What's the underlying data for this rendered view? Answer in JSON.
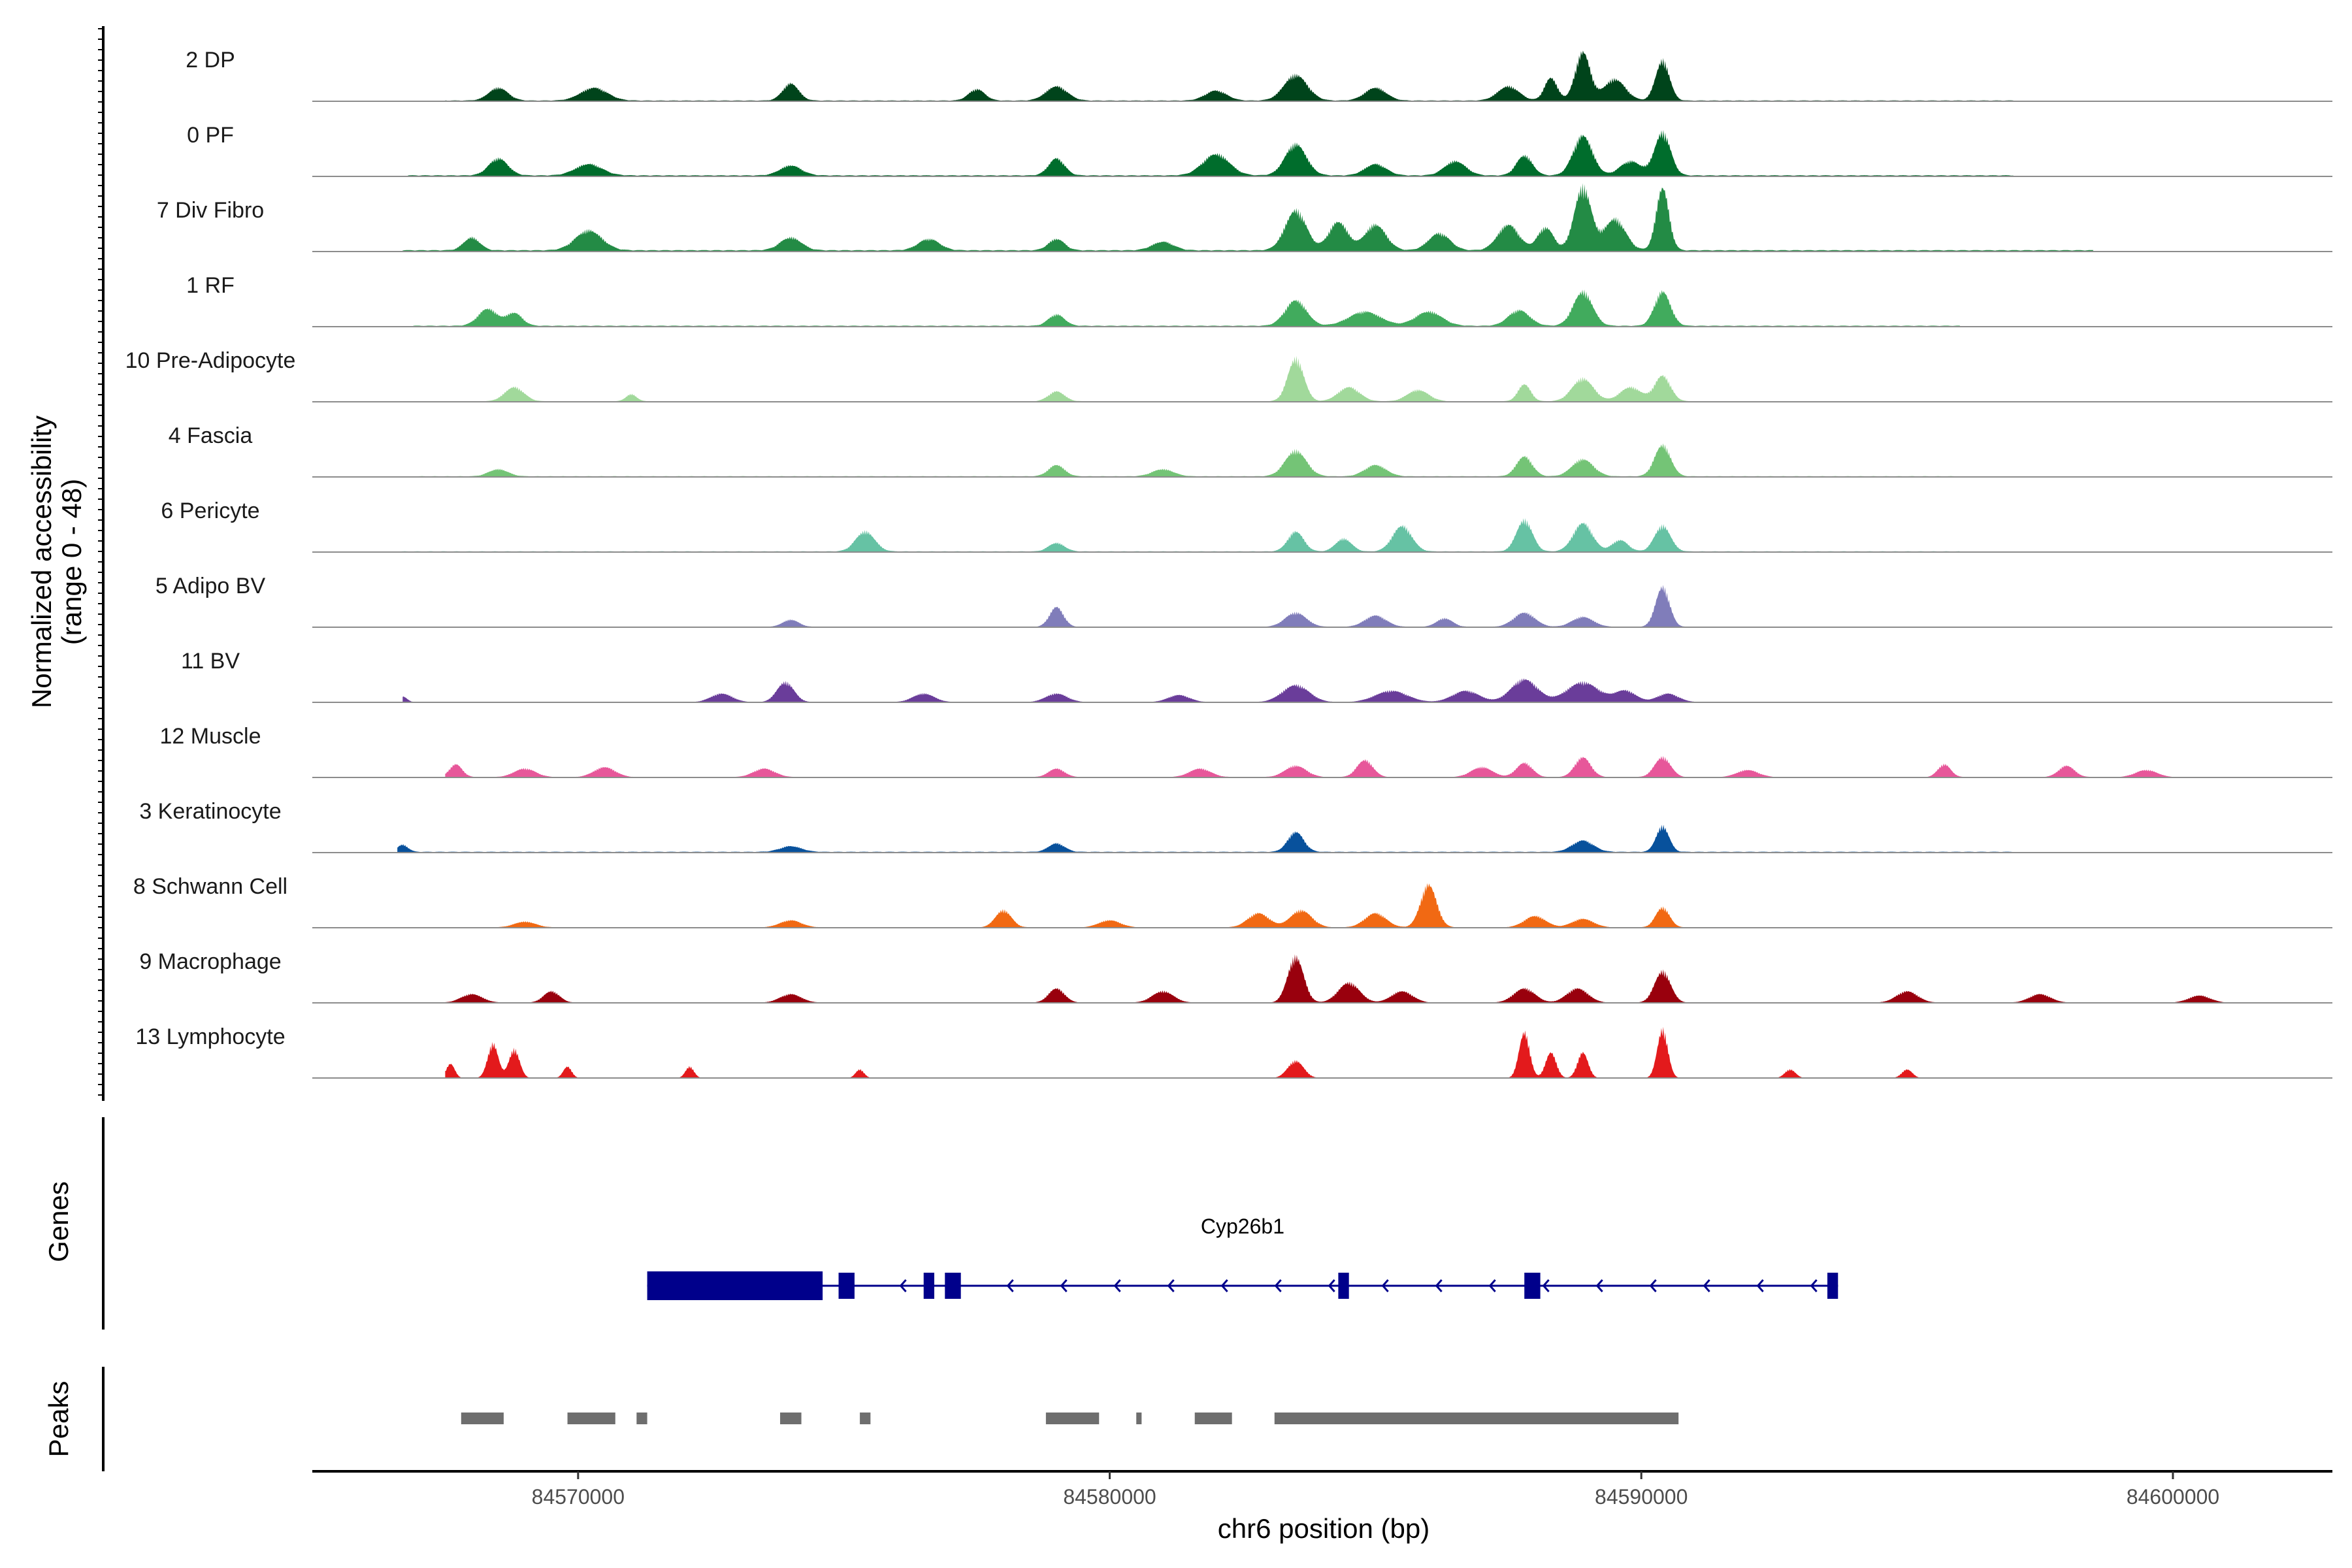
{
  "chart_data": {
    "type": "area",
    "title": "",
    "xlabel": "chr6 position (bp)",
    "ylabel": "Normalized accessibility",
    "ylabel_range": "(range 0 - 48)",
    "ylim": [
      0,
      48
    ],
    "xlim": [
      84565000,
      84603000
    ],
    "xticks": [
      84570000,
      84580000,
      84590000,
      84600000
    ],
    "xtick_labels": [
      "84570000",
      "84580000",
      "84590000",
      "84600000"
    ],
    "genes_label": "Genes",
    "peaks_label": "Peaks",
    "tracks": [
      {
        "name": "2 DP",
        "color": "#00441b",
        "start": 84567500,
        "end": 84597000,
        "base": 0.6,
        "peaks": [
          [
            84568500,
            9,
            180
          ],
          [
            84570300,
            9,
            250
          ],
          [
            84574000,
            12,
            150
          ],
          [
            84577500,
            8,
            150
          ],
          [
            84579000,
            10,
            200
          ],
          [
            84582000,
            7,
            200
          ],
          [
            84583500,
            18,
            220
          ],
          [
            84585000,
            9,
            200
          ],
          [
            84587500,
            10,
            200
          ],
          [
            84588300,
            16,
            120
          ],
          [
            84588900,
            34,
            140
          ],
          [
            84589500,
            15,
            200
          ],
          [
            84590400,
            28,
            130
          ]
        ]
      },
      {
        "name": "0 PF",
        "color": "#006d2c",
        "start": 84566800,
        "end": 84597000,
        "base": 0.8,
        "peaks": [
          [
            84568500,
            12,
            180
          ],
          [
            84570200,
            8,
            250
          ],
          [
            84574000,
            7,
            200
          ],
          [
            84579000,
            12,
            150
          ],
          [
            84582000,
            15,
            250
          ],
          [
            84583500,
            22,
            200
          ],
          [
            84585000,
            8,
            200
          ],
          [
            84586500,
            10,
            200
          ],
          [
            84587800,
            14,
            150
          ],
          [
            84588900,
            28,
            180
          ],
          [
            84589800,
            10,
            200
          ],
          [
            84590400,
            30,
            150
          ]
        ]
      },
      {
        "name": "7 Div Fibro",
        "color": "#238b45",
        "start": 84566700,
        "end": 84598500,
        "base": 1.0,
        "peaks": [
          [
            84568000,
            9,
            150
          ],
          [
            84570200,
            14,
            250
          ],
          [
            84574000,
            9,
            200
          ],
          [
            84576600,
            8,
            200
          ],
          [
            84579000,
            8,
            150
          ],
          [
            84581000,
            6,
            200
          ],
          [
            84583500,
            28,
            200
          ],
          [
            84584300,
            20,
            180
          ],
          [
            84585000,
            18,
            200
          ],
          [
            84586200,
            12,
            200
          ],
          [
            84587500,
            18,
            200
          ],
          [
            84588200,
            16,
            150
          ],
          [
            84588900,
            44,
            160
          ],
          [
            84589500,
            22,
            200
          ],
          [
            84590400,
            44,
            120
          ]
        ]
      },
      {
        "name": "1 RF",
        "color": "#41ab5d",
        "start": 84566900,
        "end": 84596000,
        "base": 0.7,
        "peaks": [
          [
            84568300,
            12,
            180
          ],
          [
            84568800,
            9,
            150
          ],
          [
            84579000,
            8,
            150
          ],
          [
            84583500,
            18,
            200
          ],
          [
            84584800,
            10,
            300
          ],
          [
            84586000,
            10,
            250
          ],
          [
            84587700,
            11,
            200
          ],
          [
            84588900,
            24,
            180
          ],
          [
            84590400,
            24,
            150
          ]
        ]
      },
      {
        "name": "10 Pre-Adipocyte",
        "color": "#a1d99b",
        "start": 84567200,
        "end": 84596300,
        "base": 0.4,
        "peaks": [
          [
            84568800,
            10,
            180
          ],
          [
            84571000,
            5,
            100
          ],
          [
            84579000,
            7,
            150
          ],
          [
            84583500,
            30,
            150
          ],
          [
            84584500,
            10,
            200
          ],
          [
            84585800,
            8,
            200
          ],
          [
            84587800,
            12,
            120
          ],
          [
            84588900,
            16,
            200
          ],
          [
            84589800,
            10,
            200
          ],
          [
            84590400,
            18,
            150
          ]
        ]
      },
      {
        "name": "4 Fascia",
        "color": "#74c476",
        "start": 84567000,
        "end": 84596000,
        "base": 0.5,
        "peaks": [
          [
            84568500,
            5,
            180
          ],
          [
            84579000,
            8,
            150
          ],
          [
            84581000,
            5,
            200
          ],
          [
            84583500,
            18,
            200
          ],
          [
            84585000,
            8,
            200
          ],
          [
            84587800,
            14,
            150
          ],
          [
            84588900,
            12,
            200
          ],
          [
            84590400,
            22,
            150
          ]
        ]
      },
      {
        "name": "6 Pericyte",
        "color": "#66c2a4",
        "start": 84566600,
        "end": 84596000,
        "base": 0.5,
        "peaks": [
          [
            84575400,
            14,
            180
          ],
          [
            84579000,
            6,
            150
          ],
          [
            84583500,
            14,
            150
          ],
          [
            84584400,
            9,
            150
          ],
          [
            84585500,
            18,
            180
          ],
          [
            84587800,
            22,
            150
          ],
          [
            84588900,
            20,
            180
          ],
          [
            84590400,
            18,
            150
          ],
          [
            84589600,
            8,
            150
          ]
        ]
      },
      {
        "name": "5 Adipo BV",
        "color": "#807dba",
        "start": 84567000,
        "end": 84596000,
        "base": 0.3,
        "peaks": [
          [
            84574000,
            5,
            150
          ],
          [
            84579000,
            14,
            130
          ],
          [
            84583500,
            10,
            200
          ],
          [
            84585000,
            8,
            200
          ],
          [
            84586300,
            6,
            150
          ],
          [
            84587800,
            10,
            200
          ],
          [
            84588900,
            7,
            200
          ],
          [
            84590400,
            28,
            130
          ]
        ]
      },
      {
        "name": "11 BV",
        "color": "#6a3d9a",
        "start": 84566700,
        "end": 84596900,
        "base": 0.2,
        "peaks": [
          [
            84566700,
            4,
            80
          ],
          [
            84573900,
            14,
            160
          ],
          [
            84572700,
            6,
            200
          ],
          [
            84576500,
            6,
            200
          ],
          [
            84579000,
            6,
            200
          ],
          [
            84581300,
            5,
            200
          ],
          [
            84583500,
            12,
            250
          ],
          [
            84585300,
            8,
            300
          ],
          [
            84586700,
            8,
            250
          ],
          [
            84587800,
            16,
            250
          ],
          [
            84588900,
            14,
            300
          ],
          [
            84589700,
            8,
            200
          ],
          [
            84590500,
            6,
            200
          ]
        ]
      },
      {
        "name": "12 Muscle",
        "color": "#e7579a",
        "start": 84567500,
        "end": 84600800,
        "base": 0.3,
        "peaks": [
          [
            84567700,
            9,
            120
          ],
          [
            84569000,
            6,
            200
          ],
          [
            84570500,
            7,
            200
          ],
          [
            84573500,
            6,
            200
          ],
          [
            84579000,
            6,
            150
          ],
          [
            84581700,
            6,
            200
          ],
          [
            84583500,
            8,
            200
          ],
          [
            84584800,
            12,
            150
          ],
          [
            84587000,
            7,
            200
          ],
          [
            84587800,
            10,
            150
          ],
          [
            84588900,
            14,
            150
          ],
          [
            84590400,
            14,
            150
          ],
          [
            84592000,
            5,
            200
          ],
          [
            84595700,
            9,
            120
          ],
          [
            84598000,
            8,
            150
          ],
          [
            84599500,
            5,
            200
          ]
        ]
      },
      {
        "name": "3 Keratinocyte",
        "color": "#08519c",
        "start": 84566600,
        "end": 84597000,
        "base": 0.6,
        "peaks": [
          [
            84566700,
            5,
            100
          ],
          [
            84574000,
            4,
            200
          ],
          [
            84579000,
            6,
            150
          ],
          [
            84583500,
            14,
            150
          ],
          [
            84588900,
            8,
            200
          ],
          [
            84590400,
            18,
            120
          ]
        ]
      },
      {
        "name": "8 Schwann Cell",
        "color": "#f16913",
        "start": 84567500,
        "end": 84597000,
        "base": 0.3,
        "peaks": [
          [
            84569000,
            4,
            200
          ],
          [
            84574000,
            5,
            200
          ],
          [
            84578000,
            12,
            150
          ],
          [
            84580000,
            5,
            200
          ],
          [
            84582800,
            10,
            200
          ],
          [
            84583600,
            12,
            200
          ],
          [
            84585000,
            10,
            200
          ],
          [
            84586000,
            30,
            150
          ],
          [
            84588000,
            8,
            200
          ],
          [
            84588900,
            6,
            200
          ],
          [
            84590400,
            14,
            130
          ]
        ]
      },
      {
        "name": "9 Macrophage",
        "color": "#99000d",
        "start": 84567500,
        "end": 84601200,
        "base": 0.2,
        "peaks": [
          [
            84568000,
            6,
            200
          ],
          [
            84569500,
            8,
            150
          ],
          [
            84574000,
            6,
            200
          ],
          [
            84579000,
            10,
            150
          ],
          [
            84581000,
            8,
            200
          ],
          [
            84583500,
            32,
            150
          ],
          [
            84584500,
            14,
            200
          ],
          [
            84585500,
            8,
            200
          ],
          [
            84587800,
            10,
            200
          ],
          [
            84588800,
            10,
            200
          ],
          [
            84590400,
            22,
            150
          ],
          [
            84595000,
            8,
            200
          ],
          [
            84597500,
            6,
            200
          ],
          [
            84600500,
            5,
            200
          ]
        ]
      },
      {
        "name": "13 Lymphocyte",
        "color": "#e31a1c",
        "start": 84567500,
        "end": 84596600,
        "base": 0,
        "peaks": [
          [
            84567600,
            10,
            80
          ],
          [
            84568400,
            24,
            100
          ],
          [
            84568800,
            20,
            100
          ],
          [
            84569800,
            8,
            80
          ],
          [
            84572100,
            8,
            80
          ],
          [
            84575300,
            6,
            80
          ],
          [
            84583500,
            12,
            150
          ],
          [
            84587800,
            32,
            100
          ],
          [
            84588300,
            18,
            100
          ],
          [
            84588900,
            18,
            100
          ],
          [
            84590400,
            34,
            100
          ],
          [
            84592800,
            6,
            100
          ],
          [
            84595000,
            6,
            100
          ]
        ]
      }
    ],
    "genes": [
      {
        "name": "Cyp26b1",
        "strand": "-",
        "start": 84571300,
        "end": 84593700,
        "exons": [
          [
            84571300,
            84574600
          ],
          [
            84574900,
            84575200
          ],
          [
            84576500,
            84576700
          ],
          [
            84576900,
            84577200
          ],
          [
            84584300,
            84584500
          ],
          [
            84587800,
            84588100
          ],
          [
            84593500,
            84593700
          ]
        ]
      }
    ],
    "peaks": [
      [
        84567800,
        84568600
      ],
      [
        84569800,
        84570700
      ],
      [
        84571100,
        84571300
      ],
      [
        84573800,
        84574200
      ],
      [
        84575300,
        84575500
      ],
      [
        84578800,
        84579800
      ],
      [
        84580500,
        84580600
      ],
      [
        84581600,
        84582300
      ],
      [
        84583100,
        84590700
      ]
    ]
  }
}
